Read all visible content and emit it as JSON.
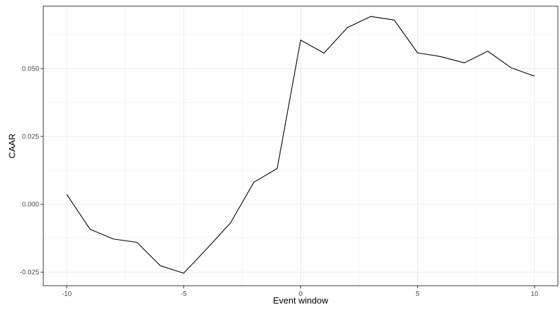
{
  "chart_data": {
    "type": "line",
    "title": "",
    "xlabel": "Event window",
    "ylabel": "CAAR",
    "xlim": [
      -11,
      11
    ],
    "ylim": [
      -0.03,
      0.073
    ],
    "x_ticks": [
      -10,
      -5,
      0,
      5,
      10
    ],
    "x_tick_labels": [
      "-10",
      "-5",
      "0",
      "5",
      "10"
    ],
    "y_ticks": [
      -0.025,
      0.0,
      0.025,
      0.05
    ],
    "y_tick_labels": [
      "-0.025",
      "0.000",
      "0.025",
      "0.050"
    ],
    "grid": true,
    "series": [
      {
        "x": [
          -10,
          -9,
          -8,
          -7,
          -6,
          -5,
          -4,
          -3,
          -2,
          -1,
          0,
          1,
          2,
          3,
          4,
          5,
          6,
          7,
          8,
          9,
          10
        ],
        "values": [
          0.0037,
          -0.0092,
          -0.0128,
          -0.014,
          -0.0226,
          -0.0254,
          -0.0163,
          -0.0069,
          0.0081,
          0.0132,
          0.0605,
          0.0557,
          0.0651,
          0.0692,
          0.0679,
          0.0558,
          0.0544,
          0.0521,
          0.0564,
          0.0503,
          0.0472
        ]
      }
    ]
  },
  "colors": {
    "line": "#000000",
    "grid_major": "#ebebeb",
    "grid_minor": "#f4f4f4",
    "panel_border": "#333333",
    "tick_label": "#4d4d4d"
  }
}
